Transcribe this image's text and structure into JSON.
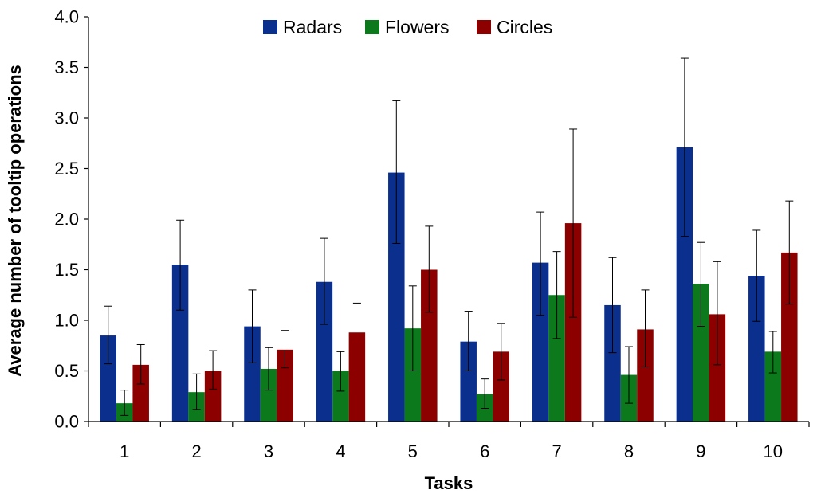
{
  "chart_data": {
    "type": "bar",
    "title": "",
    "xlabel": "Tasks",
    "ylabel": "Average number of tooltip operations",
    "categories": [
      "1",
      "2",
      "3",
      "4",
      "5",
      "6",
      "7",
      "8",
      "9",
      "10"
    ],
    "ylim": [
      0,
      4.0
    ],
    "yticks": [
      "0.0",
      "0.5",
      "1.0",
      "1.5",
      "2.0",
      "2.5",
      "3.0",
      "3.5",
      "4.0"
    ],
    "grid": false,
    "legend_position": "top-center",
    "series": [
      {
        "name": "Radars",
        "color": "#0b2f8c",
        "values": [
          0.85,
          1.55,
          0.94,
          1.38,
          2.46,
          0.79,
          1.57,
          1.15,
          2.71,
          1.44
        ],
        "err_low": [
          0.57,
          1.1,
          0.58,
          0.96,
          1.76,
          0.5,
          1.05,
          0.68,
          1.83,
          0.99
        ],
        "err_high": [
          1.14,
          1.99,
          1.3,
          1.81,
          3.17,
          1.09,
          2.07,
          1.62,
          3.59,
          1.89
        ]
      },
      {
        "name": "Flowers",
        "color": "#0c7a1c",
        "values": [
          0.18,
          0.29,
          0.52,
          0.5,
          0.92,
          0.27,
          1.25,
          0.46,
          1.36,
          0.69
        ],
        "err_low": [
          0.06,
          0.12,
          0.31,
          0.3,
          0.5,
          0.13,
          0.82,
          0.18,
          0.94,
          0.48
        ],
        "err_high": [
          0.31,
          0.47,
          0.73,
          0.69,
          1.34,
          0.42,
          1.68,
          0.74,
          1.77,
          0.89
        ]
      },
      {
        "name": "Circles",
        "color": "#8c0000",
        "values": [
          0.56,
          0.5,
          0.71,
          0.88,
          1.5,
          0.69,
          1.96,
          0.91,
          1.06,
          1.67
        ],
        "err_low": [
          0.37,
          0.32,
          0.53,
          null,
          1.08,
          0.41,
          1.03,
          0.54,
          0.56,
          1.16
        ],
        "err_high": [
          0.76,
          0.7,
          0.9,
          1.17,
          1.93,
          0.97,
          2.89,
          1.3,
          1.58,
          2.18
        ]
      }
    ]
  }
}
